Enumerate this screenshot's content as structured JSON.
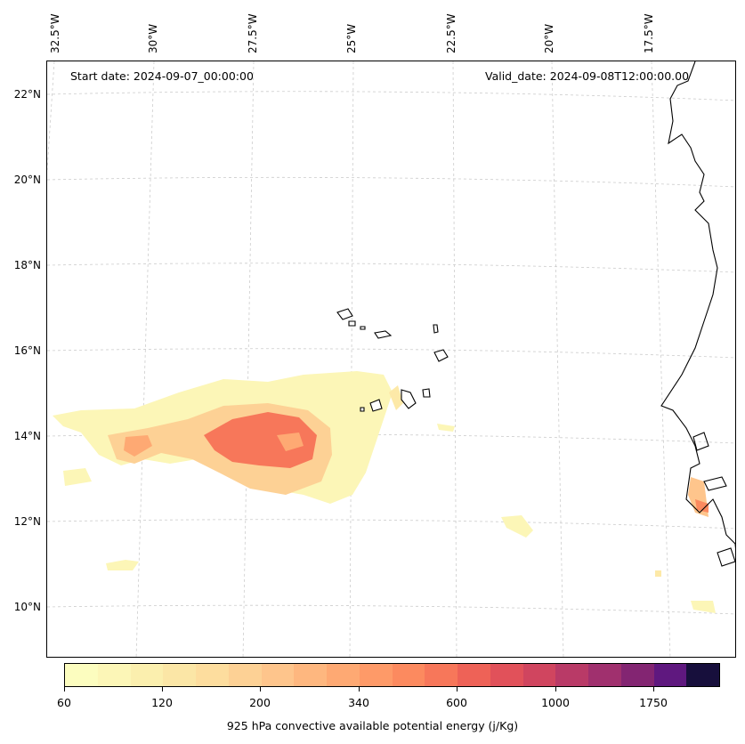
{
  "header": {
    "start_date": "Start date: 2024-09-07_00:00:00",
    "valid_date": "Valid_date: 2024-09-08T12:00:00.00"
  },
  "axes": {
    "lon_labels": [
      "32.5°W",
      "30°W",
      "27.5°W",
      "25°W",
      "22.5°W",
      "20°W",
      "17.5°W"
    ],
    "lat_labels": [
      "22°N",
      "20°N",
      "18°N",
      "16°N",
      "14°N",
      "12°N",
      "10°N"
    ],
    "gridlines": "dashed light gray"
  },
  "colorbar": {
    "label": "925 hPa convective available potential energy (j/Kg)",
    "tick_labels": [
      "60",
      "120",
      "200",
      "340",
      "600",
      "1000",
      "1750"
    ],
    "colors": [
      "#fcfdbf",
      "#fcf6b7",
      "#fbefae",
      "#fbe6a6",
      "#fddd9e",
      "#fdd195",
      "#fec58c",
      "#feb77f",
      "#fea973",
      "#fe9a68",
      "#fc8a5f",
      "#f7775a",
      "#ee6257",
      "#e1515a",
      "#d0455f",
      "#b93a67",
      "#a0306e",
      "#832572",
      "#5f187f",
      "#170f3c"
    ]
  },
  "map": {
    "features": [
      "coastline-africa",
      "cape-verde-islands",
      "cape-fuerteventura-none"
    ],
    "cape_field_colors": {
      "low": "#fcf6b7",
      "mid": "#fdd195",
      "high": "#f7775a"
    }
  }
}
